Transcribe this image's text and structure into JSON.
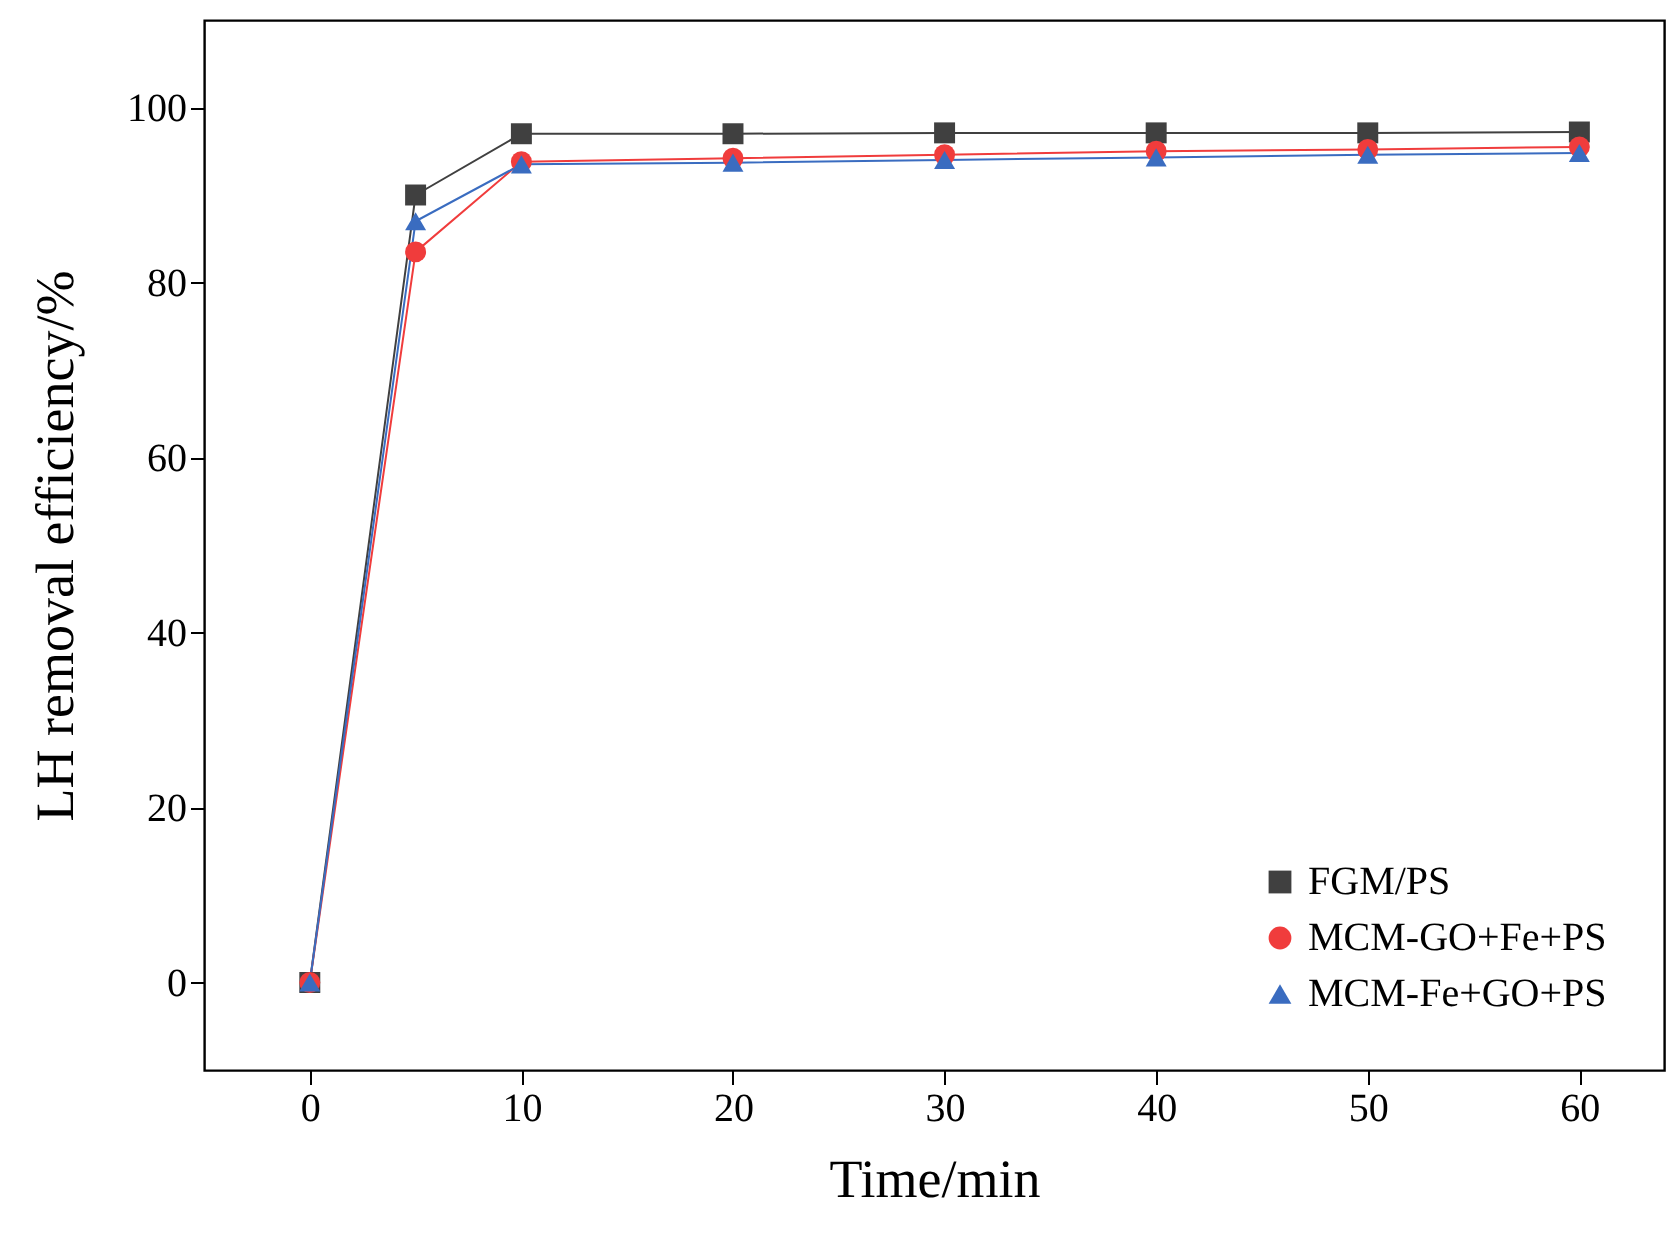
{
  "chart_data": {
    "type": "line",
    "xlabel": "Time/min",
    "ylabel": "LH removal efficiency/%",
    "x": [
      0,
      5,
      10,
      20,
      30,
      40,
      50,
      60
    ],
    "series": [
      {
        "name": "FGM/PS",
        "color": "#404040",
        "marker": "square",
        "values": [
          0,
          90,
          97,
          97,
          97.1,
          97.1,
          97.1,
          97.2
        ]
      },
      {
        "name": "MCM-GO+Fe+PS",
        "color": "#f03c3c",
        "marker": "circle",
        "values": [
          0,
          83.5,
          93.8,
          94.2,
          94.6,
          95,
          95.2,
          95.5
        ]
      },
      {
        "name": "MCM-Fe+GO+PS",
        "color": "#3a6cc0",
        "marker": "triangle",
        "values": [
          0,
          87,
          93.5,
          93.7,
          94,
          94.3,
          94.6,
          94.8
        ]
      }
    ],
    "xlim": [
      -5,
      64
    ],
    "xticks": [
      0,
      10,
      20,
      30,
      40,
      50,
      60
    ],
    "ylim": [
      -10,
      110
    ],
    "yticks": [
      0,
      20,
      40,
      60,
      80,
      100
    ],
    "grid": false,
    "legend": "bottom right"
  }
}
